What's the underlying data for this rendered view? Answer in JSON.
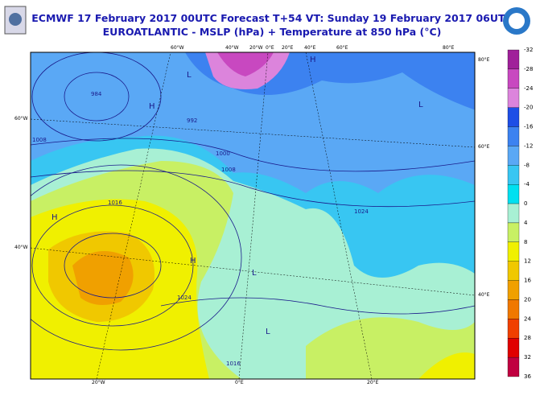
{
  "header": {
    "title": "ECMWF 17 February 2017 00UTC Forecast T+54 VT: Sunday 19 February 2017 06UTC",
    "subtitle": "EUROATLANTIC - MSLP (hPa) + Temperature at 850 hPa (°C)"
  },
  "colorbar": {
    "labels": [
      -32,
      -28,
      -24,
      -20,
      -16,
      -12,
      -8,
      -4,
      0,
      4,
      8,
      12,
      16,
      20,
      24,
      28,
      32,
      36
    ],
    "colors": [
      "#a0209a",
      "#c848c0",
      "#dc84dc",
      "#1e4ee6",
      "#3c82f0",
      "#5aa8f5",
      "#38c6f2",
      "#00e0f0",
      "#a8f0d4",
      "#c8f064",
      "#f0f000",
      "#f0c800",
      "#f0a000",
      "#f07800",
      "#f04000",
      "#e00000",
      "#c00040"
    ]
  },
  "map": {
    "top_labels": [
      "60°W",
      "40°W",
      "20°W",
      "0°E",
      "20°E",
      "40°E",
      "60°E",
      "80°E"
    ],
    "left_labels": [
      "60°W",
      "40°W"
    ],
    "right_labels": [
      "80°E",
      "60°E",
      "40°E"
    ],
    "bottom_labels": [
      "20°W",
      "0°E",
      "20°E"
    ],
    "isobar_labels": [
      "1016",
      "1008",
      "1000",
      "992",
      "984",
      "1024",
      "1016",
      "1008",
      "1024"
    ],
    "pressure_centers": [
      "H",
      "H",
      "L",
      "H",
      "L",
      "L",
      "H",
      "L"
    ]
  }
}
